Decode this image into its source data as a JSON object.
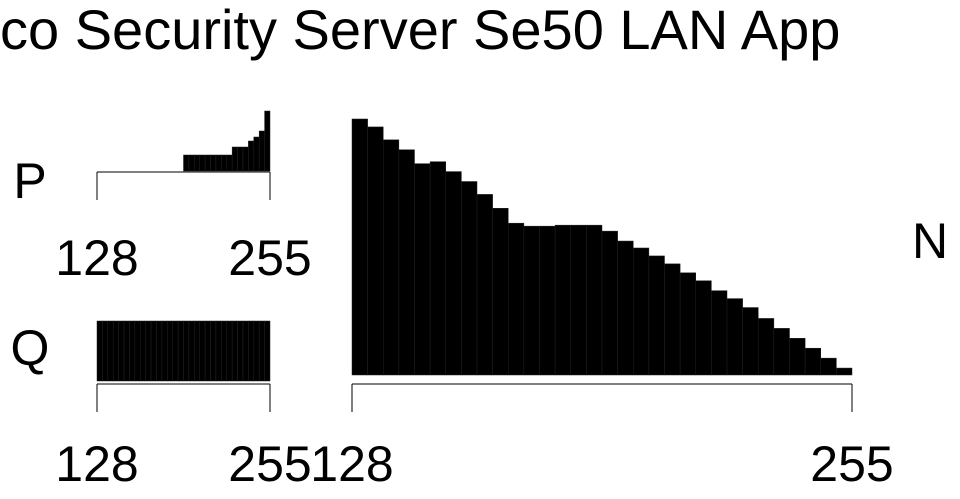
{
  "title": "co Security Server Se50 LAN App",
  "chart_data": [
    {
      "type": "bar",
      "label": "P",
      "xlim": [
        128,
        255
      ],
      "xticks": [
        128,
        255
      ],
      "ylim": [
        0,
        64
      ],
      "values": [
        0,
        0,
        0,
        0,
        0,
        0,
        0,
        0,
        0,
        0,
        0,
        0,
        0,
        0,
        0,
        0,
        16,
        16,
        16,
        16,
        16,
        16,
        16,
        16,
        16,
        24,
        24,
        24,
        30,
        34,
        40,
        60
      ]
    },
    {
      "type": "bar",
      "label": "Q",
      "xlim": [
        128,
        255
      ],
      "xticks": [
        128,
        255
      ],
      "ylim": [
        0,
        64
      ],
      "values": [
        60,
        60,
        60,
        60,
        60,
        60,
        60,
        60,
        60,
        60,
        60,
        60,
        60,
        60,
        60,
        60,
        60,
        60,
        60,
        60,
        60,
        60,
        60,
        60,
        60,
        60,
        60,
        60,
        60,
        60,
        60,
        60
      ]
    },
    {
      "type": "bar",
      "label": "N",
      "xlim": [
        128,
        255
      ],
      "xticks": [
        128,
        255
      ],
      "ylim": [
        0,
        260
      ],
      "values": [
        258,
        250,
        237,
        227,
        213,
        215,
        205,
        195,
        182,
        168,
        153,
        150,
        150,
        151,
        151,
        151,
        145,
        135,
        128,
        120,
        112,
        103,
        95,
        85,
        77,
        68,
        57,
        47,
        37,
        27,
        17,
        7
      ]
    }
  ]
}
